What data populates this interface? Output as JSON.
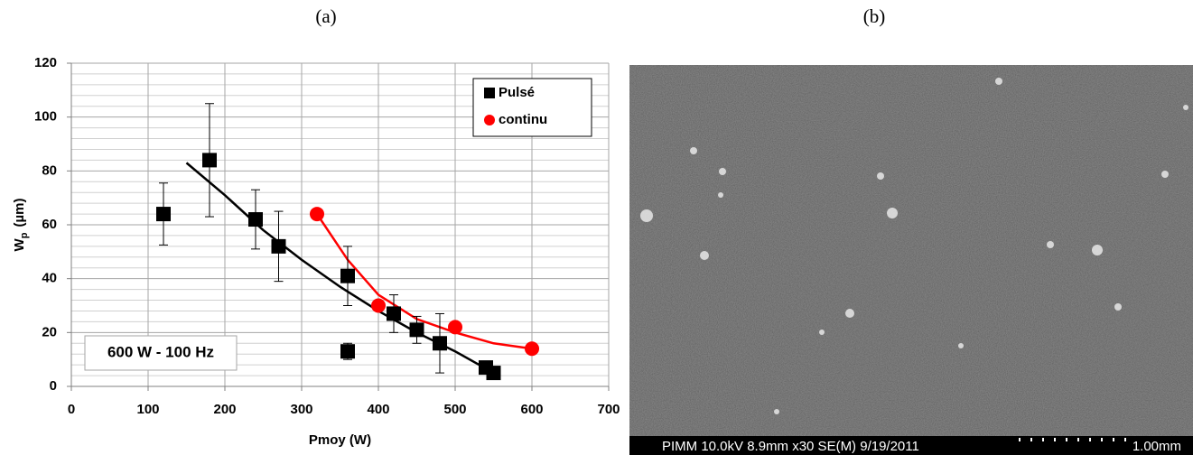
{
  "panel_labels": [
    "(a)",
    "(b)"
  ],
  "chart_data": {
    "type": "scatter",
    "xlabel": "Pmoy (W)",
    "ylabel_parts": [
      "W",
      "p",
      "(µm)"
    ],
    "annotation": "600 W - 100 Hz",
    "xlim": [
      0,
      700
    ],
    "xticks": [
      0,
      100,
      200,
      300,
      400,
      500,
      600,
      700
    ],
    "ylim": [
      0,
      120
    ],
    "yticks": [
      0,
      20,
      40,
      60,
      80,
      100,
      120
    ],
    "grid": true,
    "legend": "upper right",
    "series": [
      {
        "name": "Pulsé",
        "color": "#000000",
        "marker": "square",
        "x": [
          120,
          180,
          240,
          270,
          360,
          360,
          420,
          450,
          480,
          540,
          550
        ],
        "values": [
          64,
          84,
          62,
          52,
          41,
          13,
          27,
          21,
          16,
          7,
          5
        ],
        "errors": [
          11.5,
          21,
          11,
          13,
          11,
          3,
          7,
          5,
          11,
          null,
          null
        ]
      },
      {
        "name": "continu",
        "color": "#ff0000",
        "marker": "circle",
        "x": [
          320,
          400,
          500,
          600
        ],
        "values": [
          64,
          30,
          22,
          14
        ]
      }
    ],
    "trendlines": [
      {
        "color": "#000000",
        "x": [
          150,
          200,
          250,
          300,
          350,
          400,
          450,
          500,
          550
        ],
        "values": [
          83,
          71,
          58,
          47,
          37,
          28,
          20,
          13,
          5
        ]
      },
      {
        "color": "#ff0000",
        "x": [
          320,
          360,
          400,
          450,
          500,
          550,
          600
        ],
        "values": [
          64,
          47,
          34,
          25,
          20,
          16,
          14
        ]
      }
    ]
  },
  "image": {
    "caption": "PIMM 10.0kV 8.9mm x30 SE(M) 9/19/2011",
    "scale": "1.00mm"
  }
}
